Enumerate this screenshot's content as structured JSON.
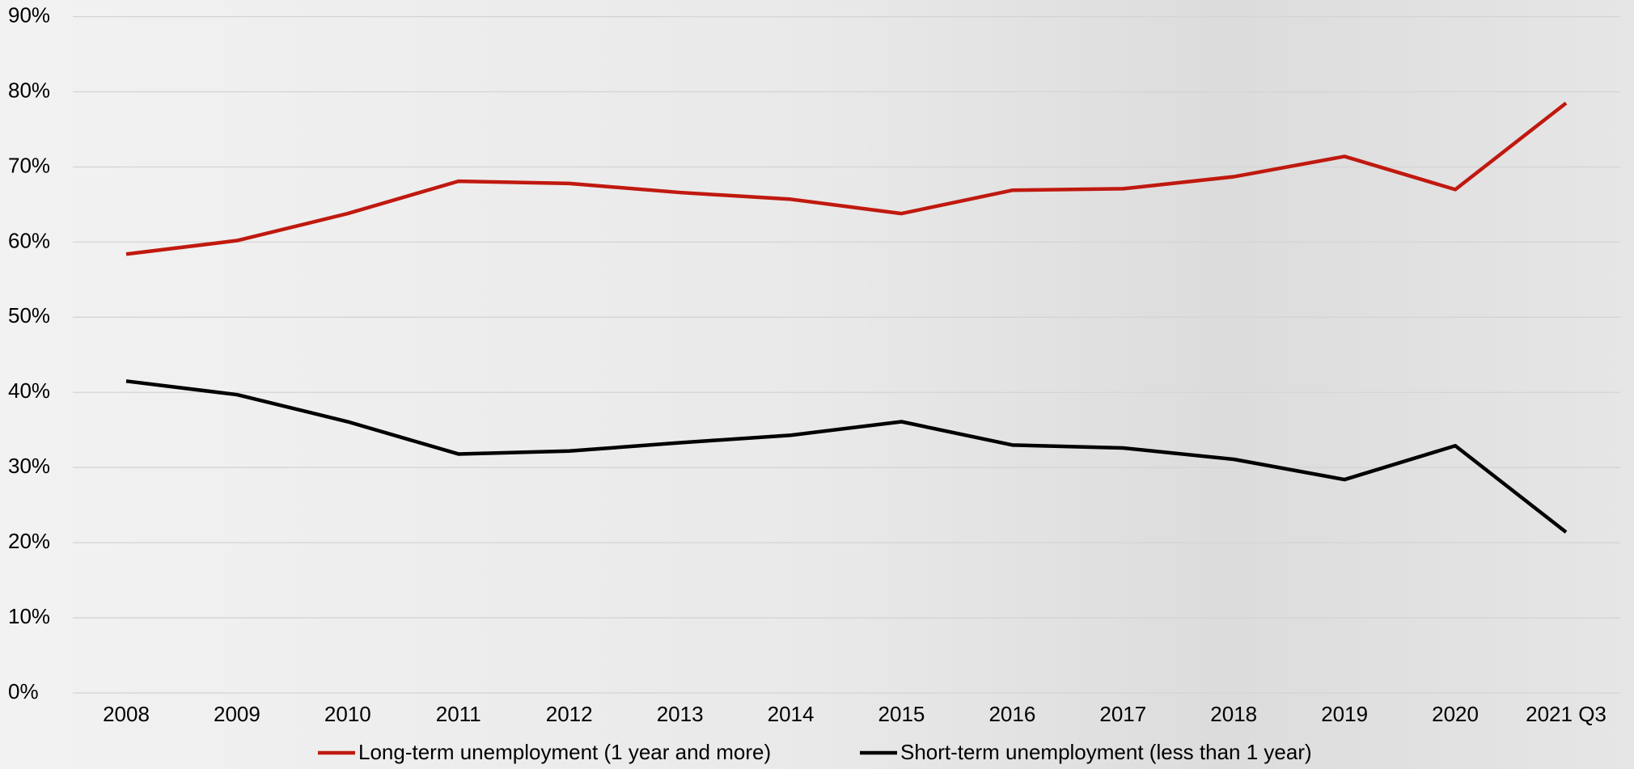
{
  "chart_data": {
    "type": "line",
    "categories": [
      "2008",
      "2009",
      "2010",
      "2011",
      "2012",
      "2013",
      "2014",
      "2015",
      "2016",
      "2017",
      "2018",
      "2019",
      "2020",
      "2021 Q3"
    ],
    "series": [
      {
        "name": "Long-term unemployment (1 year and more)",
        "color": "#c0190f",
        "values": [
          58.4,
          60.2,
          63.8,
          68.1,
          67.8,
          66.6,
          65.7,
          63.8,
          66.9,
          67.1,
          68.7,
          71.4,
          67.0,
          78.5
        ]
      },
      {
        "name": "Short-term unemployment (less than 1 year)",
        "color": "#000000",
        "values": [
          41.5,
          39.7,
          36.1,
          31.8,
          32.2,
          33.3,
          34.3,
          36.1,
          33.0,
          32.6,
          31.1,
          28.4,
          32.9,
          21.4
        ]
      }
    ],
    "ylim": [
      0,
      90
    ],
    "yticks": [
      {
        "value": 0,
        "label": "0%"
      },
      {
        "value": 10,
        "label": "10%"
      },
      {
        "value": 20,
        "label": "20%"
      },
      {
        "value": 30,
        "label": "30%"
      },
      {
        "value": 40,
        "label": "40%"
      },
      {
        "value": 50,
        "label": "50%"
      },
      {
        "value": 60,
        "label": "60%"
      },
      {
        "value": 70,
        "label": "70%"
      },
      {
        "value": 80,
        "label": "80%"
      },
      {
        "value": 90,
        "label": "90%"
      }
    ],
    "grid": true,
    "legend": "bottom"
  }
}
